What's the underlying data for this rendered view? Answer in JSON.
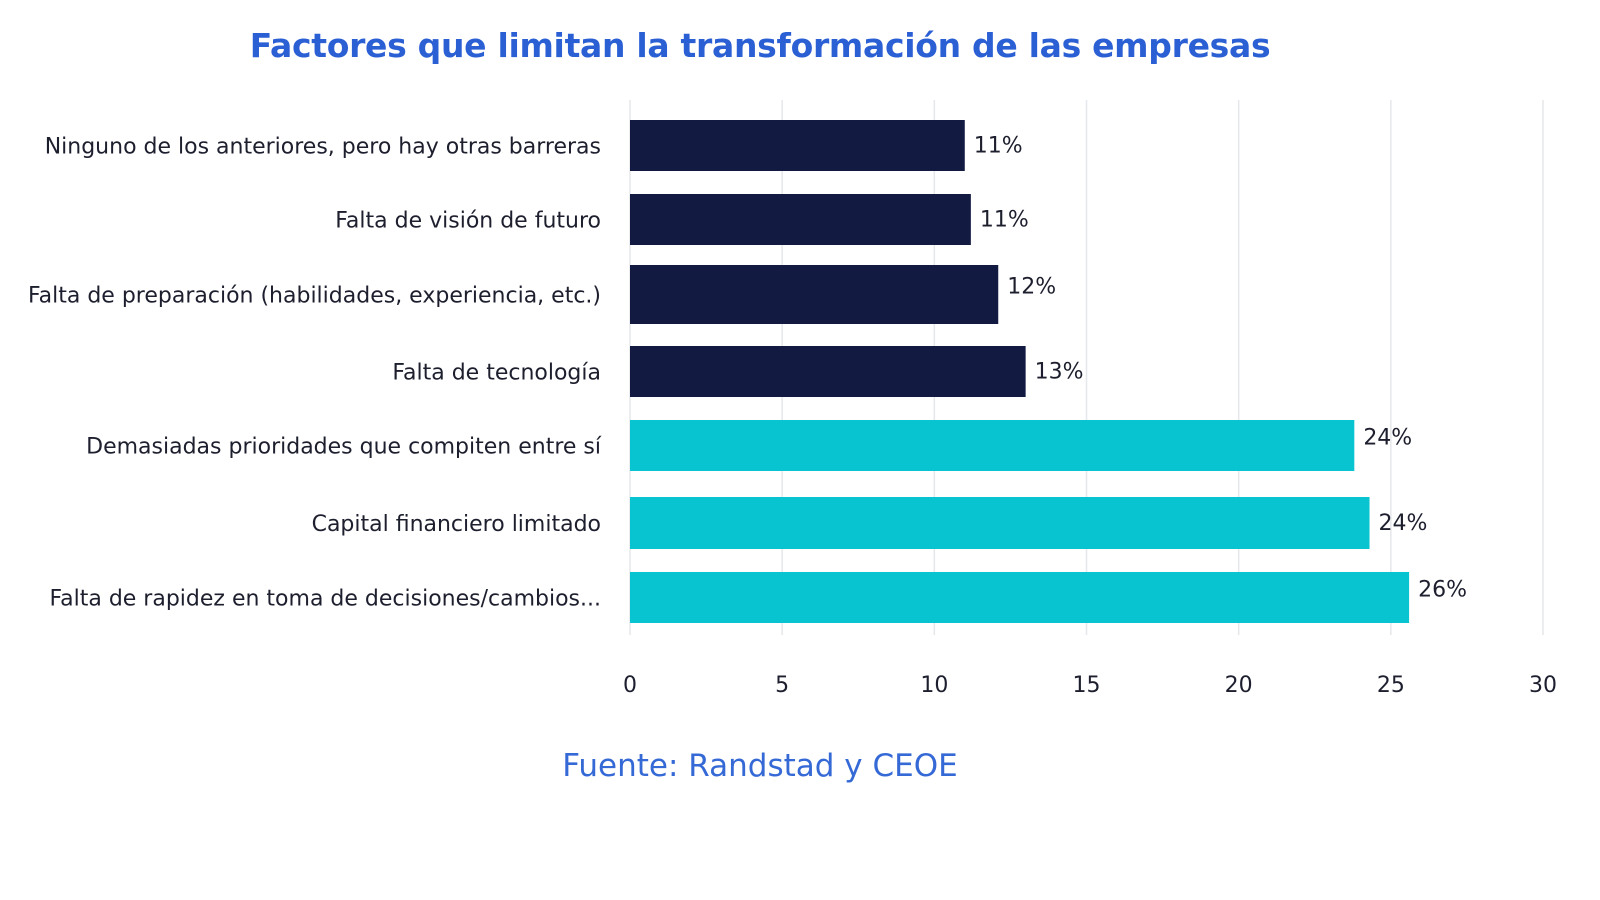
{
  "chart_data": {
    "type": "bar",
    "orientation": "horizontal",
    "title": "Factores que limitan la transformación de las empresas",
    "source": "Fuente: Randstad y CEOE",
    "categories": [
      "Ninguno de los anteriores, pero hay otras barreras",
      "Falta de visión de futuro",
      "Falta de preparación (habilidades, experiencia, etc.)",
      "Falta de tecnología",
      "Demasiadas prioridades que compiten entre sí",
      "Capital financiero limitado",
      "Falta de rapidez en toma de decisiones/cambios..."
    ],
    "values": [
      11.0,
      11.2,
      12.1,
      13.0,
      23.8,
      24.3,
      25.6
    ],
    "data_labels": [
      "11%",
      "11%",
      "12%",
      "13%",
      "24%",
      "24%",
      "26%"
    ],
    "bar_colors": [
      "#121a42",
      "#121a42",
      "#121a42",
      "#121a42",
      "#08c4d0",
      "#08c4d0",
      "#08c4d0"
    ],
    "xlim": [
      0,
      30
    ],
    "xticks": [
      "0",
      "5",
      "10",
      "15",
      "20",
      "25",
      "30"
    ],
    "grid": "vertical",
    "xlabel": "",
    "ylabel": ""
  }
}
